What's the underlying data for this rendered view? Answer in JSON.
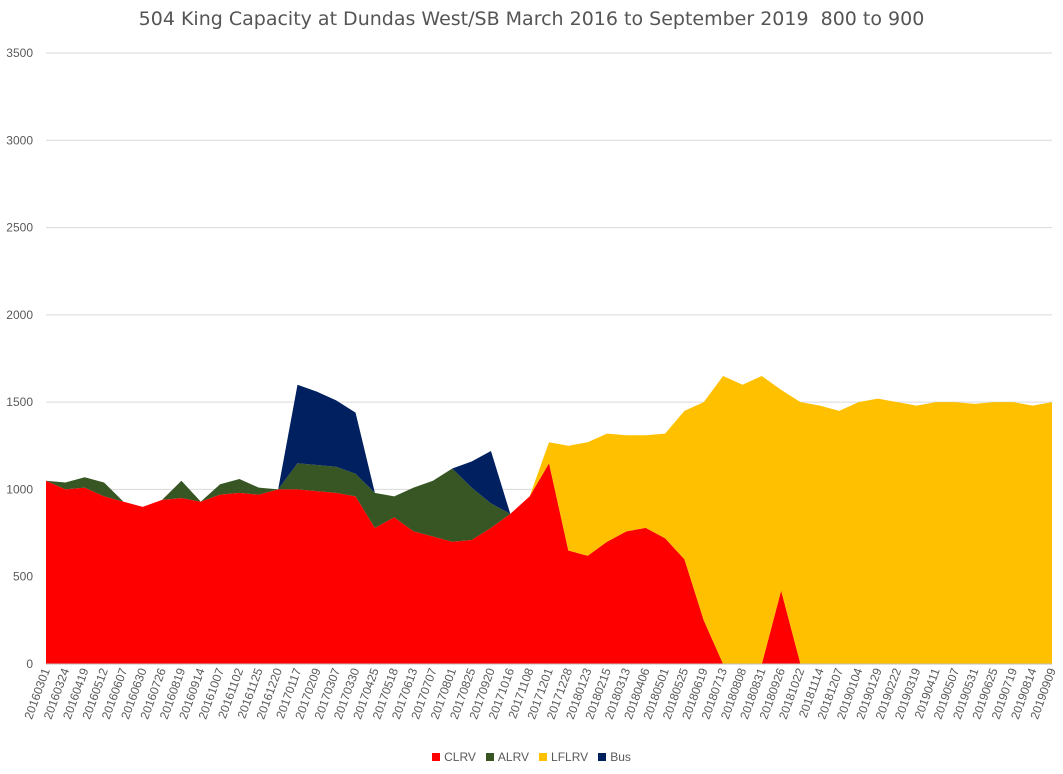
{
  "chart_data": {
    "type": "area",
    "stacked": true,
    "title": "504 King Capacity at Dundas West/SB March 2016 to September 2019  800 to 900",
    "xlabel": "",
    "ylabel": "",
    "ylim": [
      0,
      3500
    ],
    "yticks": [
      0,
      500,
      1000,
      1500,
      2000,
      2500,
      3000,
      3500
    ],
    "grid": true,
    "legend": "bottom",
    "categories": [
      "20160301",
      "20160324",
      "20160419",
      "20160512",
      "20160607",
      "20160630",
      "20160726",
      "20160819",
      "20160914",
      "20161007",
      "20161102",
      "20161125",
      "20161220",
      "20170117",
      "20170209",
      "20170307",
      "20170330",
      "20170425",
      "20170518",
      "20170613",
      "20170707",
      "20170801",
      "20170825",
      "20170920",
      "20171016",
      "20171108",
      "20171201",
      "20171228",
      "20180123",
      "20180215",
      "20180313",
      "20180406",
      "20180501",
      "20180525",
      "20180619",
      "20180713",
      "20180808",
      "20180831",
      "20180926",
      "20181022",
      "20181114",
      "20181207",
      "20190104",
      "20190129",
      "20190222",
      "20190319",
      "20190411",
      "20190507",
      "20190531",
      "20190625",
      "20190719",
      "20190814",
      "20190909"
    ],
    "series": [
      {
        "name": "CLRV",
        "color": "#FF0000",
        "values": [
          1050,
          1000,
          1010,
          960,
          930,
          900,
          940,
          950,
          930,
          970,
          980,
          970,
          1000,
          1000,
          990,
          980,
          960,
          780,
          840,
          760,
          730,
          700,
          710,
          780,
          860,
          960,
          1150,
          650,
          620,
          700,
          760,
          780,
          720,
          600,
          250,
          0,
          0,
          0,
          420,
          0,
          0,
          0,
          0,
          0,
          0,
          0,
          0,
          0,
          0,
          0,
          0,
          0,
          0
        ]
      },
      {
        "name": "ALRV",
        "color": "#375623",
        "values": [
          0,
          40,
          60,
          80,
          0,
          0,
          0,
          100,
          0,
          60,
          80,
          40,
          0,
          150,
          150,
          150,
          130,
          200,
          120,
          250,
          320,
          420,
          300,
          140,
          0,
          0,
          0,
          0,
          0,
          0,
          0,
          0,
          0,
          0,
          0,
          0,
          0,
          0,
          0,
          0,
          0,
          0,
          0,
          0,
          0,
          0,
          0,
          0,
          0,
          0,
          0,
          0,
          0
        ]
      },
      {
        "name": "LFLRV",
        "color": "#FFC000",
        "values": [
          0,
          0,
          0,
          0,
          0,
          0,
          0,
          0,
          0,
          0,
          0,
          0,
          0,
          0,
          0,
          0,
          0,
          0,
          0,
          0,
          0,
          0,
          0,
          0,
          0,
          0,
          120,
          600,
          650,
          620,
          550,
          530,
          600,
          850,
          1250,
          1650,
          1600,
          1650,
          1150,
          1500,
          1480,
          1450,
          1500,
          1520,
          1500,
          1480,
          1500,
          1500,
          1490,
          1500,
          1500,
          1480,
          1500
        ]
      },
      {
        "name": "Bus",
        "color": "#002060",
        "values": [
          0,
          0,
          0,
          0,
          0,
          0,
          0,
          0,
          0,
          0,
          0,
          0,
          0,
          450,
          420,
          380,
          350,
          0,
          0,
          0,
          0,
          0,
          150,
          300,
          0,
          0,
          0,
          0,
          0,
          0,
          0,
          0,
          0,
          0,
          0,
          0,
          0,
          0,
          0,
          0,
          0,
          0,
          0,
          0,
          0,
          0,
          0,
          0,
          0,
          0,
          0,
          0,
          0
        ]
      }
    ]
  }
}
